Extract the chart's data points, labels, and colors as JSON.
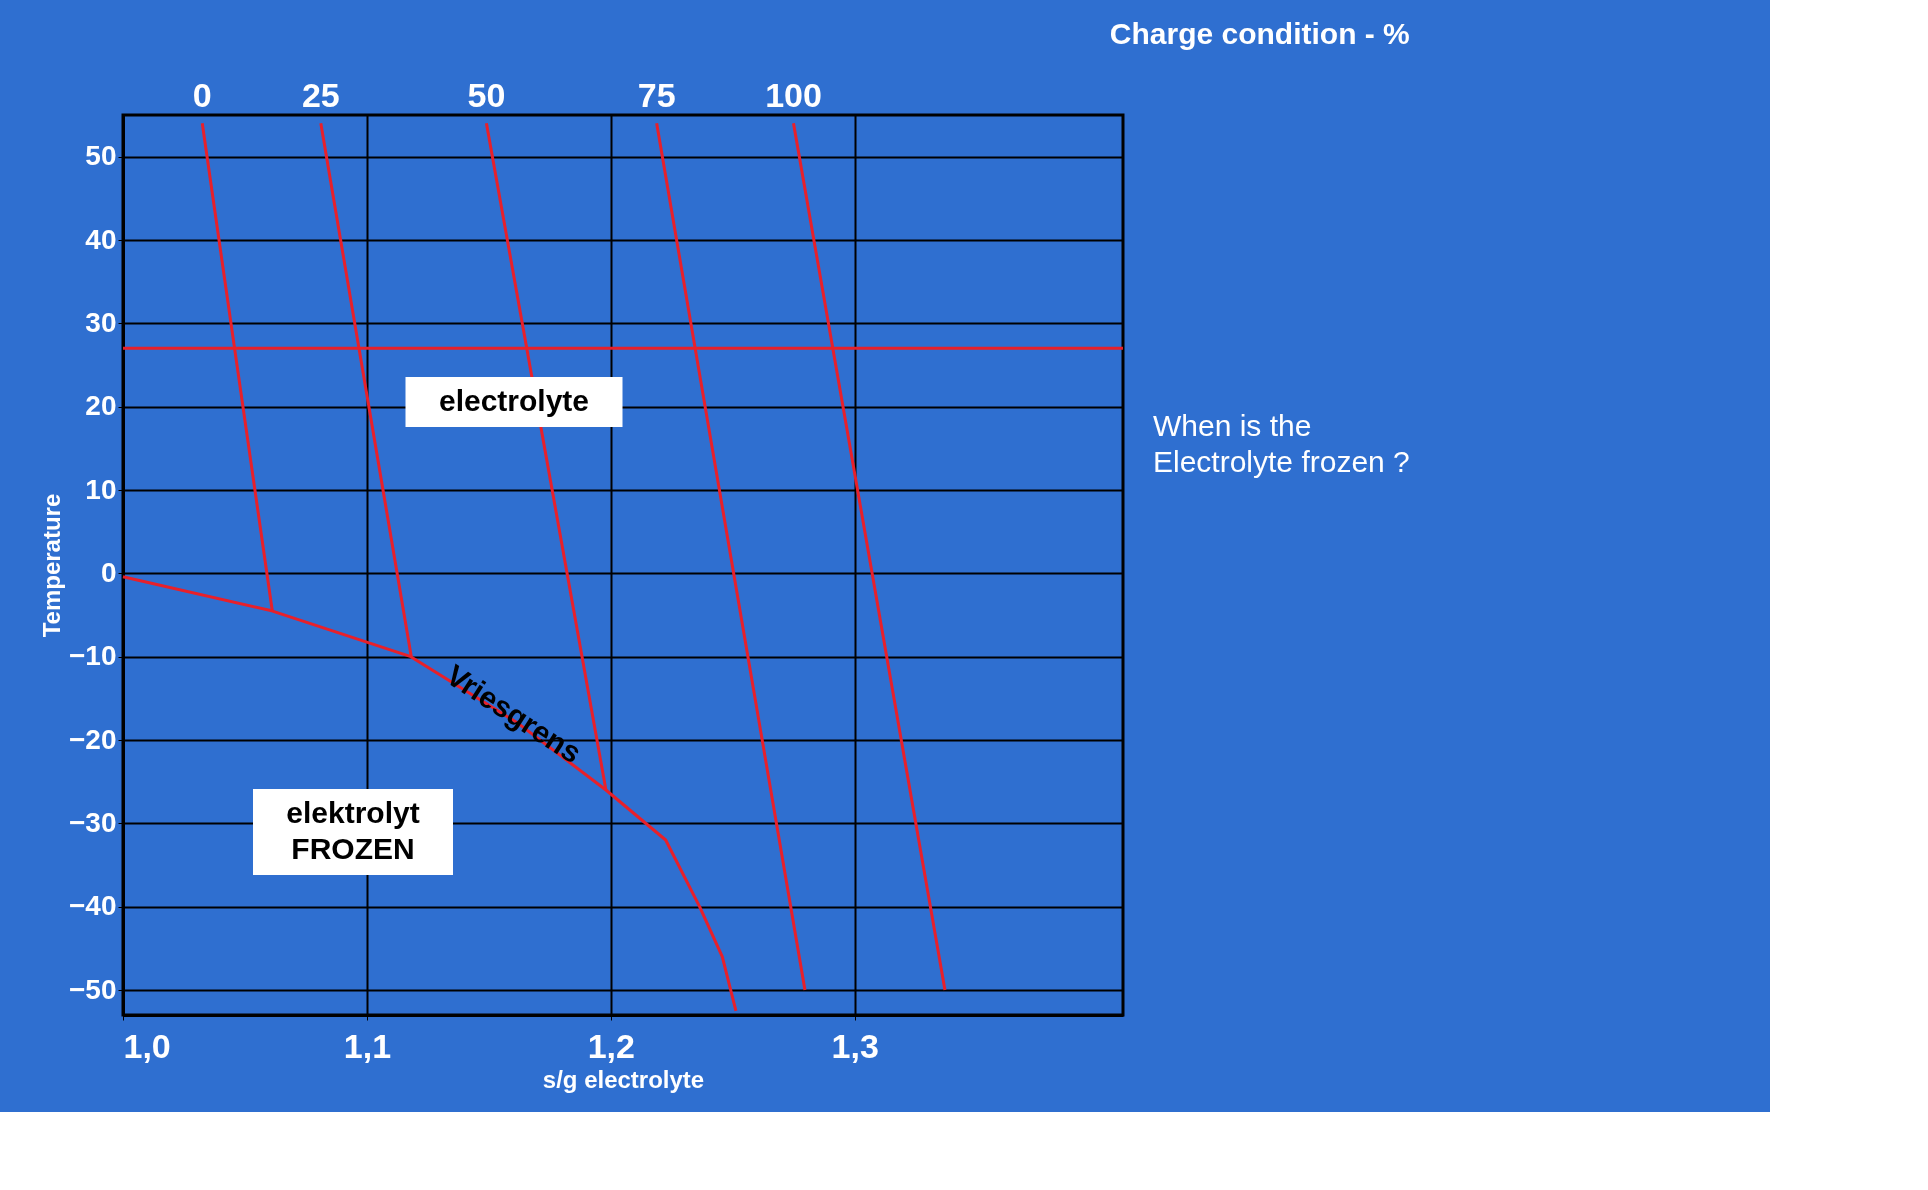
{
  "chart_data": {
    "type": "line",
    "title": "Charge condition - %",
    "xlabel": "s/g electrolyte",
    "ylabel": "Temperature",
    "xlim": [
      1.0,
      1.41
    ],
    "ylim": [
      -53,
      55
    ],
    "xticks": [
      {
        "value": 1.0,
        "label": "1,0"
      },
      {
        "value": 1.1,
        "label": "1,1"
      },
      {
        "value": 1.2,
        "label": "1,2"
      },
      {
        "value": 1.3,
        "label": "1,3"
      }
    ],
    "yticks": [
      -50,
      -40,
      -30,
      -20,
      -10,
      0,
      10,
      20,
      30,
      40,
      50
    ],
    "grid": true,
    "marker": "none",
    "line_style": "solid",
    "series": [
      {
        "name": "0",
        "color": "#e8202a",
        "x": [
          1.0325,
          1.0612
        ],
        "values": [
          54,
          -4.5
        ]
      },
      {
        "name": "25",
        "color": "#e8202a",
        "x": [
          1.0811,
          1.1182
        ],
        "values": [
          54,
          -10
        ]
      },
      {
        "name": "50",
        "color": "#e8202a",
        "x": [
          1.149,
          1.198
        ],
        "values": [
          54,
          -26
        ]
      },
      {
        "name": "75",
        "color": "#e8202a",
        "x": [
          1.2188,
          1.2796
        ],
        "values": [
          54,
          -50
        ]
      },
      {
        "name": "100",
        "color": "#e8202a",
        "x": [
          1.2749,
          1.337
        ],
        "values": [
          54,
          -50
        ]
      },
      {
        "color": "#e8202a",
        "x": [
          1.0,
          1.061,
          1.118,
          1.162,
          1.198,
          1.2225,
          1.2364,
          1.2457,
          1.2513
        ],
        "values": [
          -0.4,
          -4.5,
          -10,
          -18,
          -26,
          -32,
          -40,
          -46,
          -52.5
        ]
      }
    ],
    "ref_lines": [
      {
        "axis": "y",
        "value": 27,
        "color": "#e8202a"
      }
    ],
    "annotations": [
      "electrolyte",
      "elektrolyt\nFROZEN",
      {
        "text": "Vriesgrens",
        "x": 1.16,
        "y": -17
      },
      "When is the\nElectrolyte frozen ?"
    ]
  }
}
